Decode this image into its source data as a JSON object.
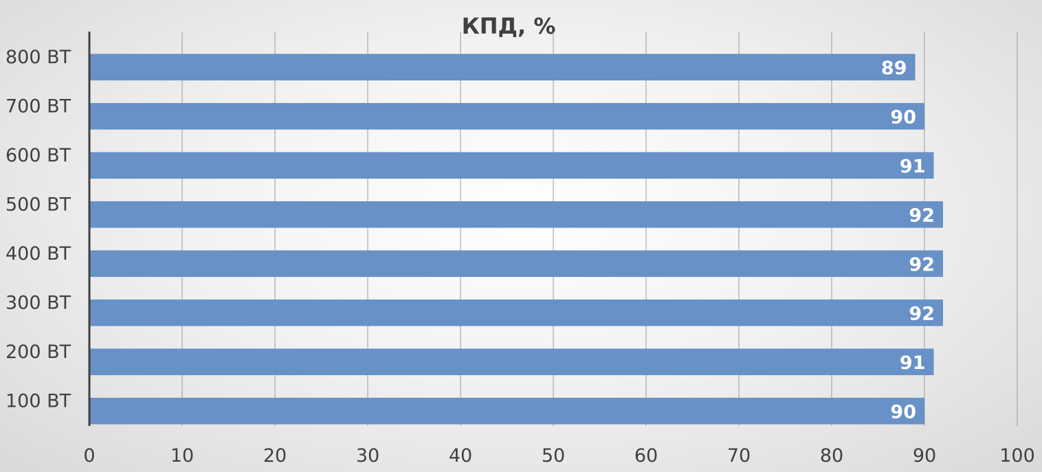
{
  "chart_data": {
    "type": "bar",
    "orientation": "horizontal",
    "title": "КПД, %",
    "categories": [
      "100 ВТ",
      "200 ВТ",
      "300 ВТ",
      "400 ВТ",
      "500 ВТ",
      "600 ВТ",
      "700 ВТ",
      "800 ВТ"
    ],
    "values": [
      90,
      91,
      92,
      92,
      92,
      91,
      90,
      89
    ],
    "xlim": [
      0,
      100
    ],
    "xticks": [
      0,
      10,
      20,
      30,
      40,
      50,
      60,
      70,
      80,
      90,
      100
    ],
    "grid": true,
    "legend": "none",
    "data_labels": true,
    "colors": {
      "bar": "#6791c7",
      "text": "#404040",
      "label": "#ffffff"
    }
  }
}
